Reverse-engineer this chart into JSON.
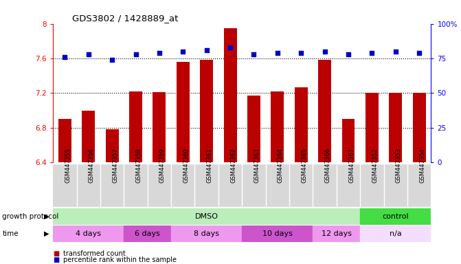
{
  "title": "GDS3802 / 1428889_at",
  "samples": [
    "GSM447355",
    "GSM447356",
    "GSM447357",
    "GSM447358",
    "GSM447359",
    "GSM447360",
    "GSM447361",
    "GSM447362",
    "GSM447363",
    "GSM447364",
    "GSM447365",
    "GSM447366",
    "GSM447367",
    "GSM447352",
    "GSM447353",
    "GSM447354"
  ],
  "bar_values": [
    6.9,
    7.0,
    6.78,
    7.22,
    7.21,
    7.56,
    7.58,
    7.95,
    7.17,
    7.22,
    7.27,
    7.58,
    6.9,
    7.2,
    7.2,
    7.2
  ],
  "percentile_values": [
    76,
    78,
    74,
    78,
    79,
    80,
    81,
    83,
    78,
    79,
    79,
    80,
    78,
    79,
    80,
    79
  ],
  "bar_color": "#bb0000",
  "dot_color": "#0000cc",
  "ylim_left": [
    6.4,
    8.0
  ],
  "ylim_right": [
    0,
    100
  ],
  "yticks_left": [
    6.4,
    6.8,
    7.2,
    7.6,
    8.0
  ],
  "ytick_labels_left": [
    "6.4",
    "6.8",
    "7.2",
    "7.6",
    "8"
  ],
  "yticks_right": [
    0,
    25,
    50,
    75,
    100
  ],
  "ytick_labels_right": [
    "0",
    "25",
    "50",
    "75",
    "100%"
  ],
  "dotted_lines": [
    6.8,
    7.2,
    7.6
  ],
  "growth_protocol_groups": [
    {
      "label": "DMSO",
      "start": 0,
      "end": 13,
      "color": "#bbeebb"
    },
    {
      "label": "control",
      "start": 13,
      "end": 16,
      "color": "#44dd44"
    }
  ],
  "time_groups": [
    {
      "label": "4 days",
      "start": 0,
      "end": 3,
      "color": "#ee99ee"
    },
    {
      "label": "6 days",
      "start": 3,
      "end": 5,
      "color": "#cc55cc"
    },
    {
      "label": "8 days",
      "start": 5,
      "end": 8,
      "color": "#ee99ee"
    },
    {
      "label": "10 days",
      "start": 8,
      "end": 11,
      "color": "#cc55cc"
    },
    {
      "label": "12 days",
      "start": 11,
      "end": 13,
      "color": "#ee99ee"
    },
    {
      "label": "n/a",
      "start": 13,
      "end": 16,
      "color": "#f5ddff"
    }
  ],
  "legend_bar_label": "transformed count",
  "legend_dot_label": "percentile rank within the sample",
  "growth_protocol_label": "growth protocol",
  "time_label": "time",
  "bar_width": 0.55,
  "bg_color": "#d8d8d8",
  "sample_col_colors": [
    "#d8d8d8",
    "#d8d8d8",
    "#d8d8d8",
    "#d8d8d8",
    "#d8d8d8",
    "#d8d8d8",
    "#d8d8d8",
    "#d8d8d8",
    "#d8d8d8",
    "#d8d8d8",
    "#d8d8d8",
    "#d8d8d8",
    "#d8d8d8",
    "#d8d8d8",
    "#d8d8d8",
    "#d8d8d8"
  ]
}
